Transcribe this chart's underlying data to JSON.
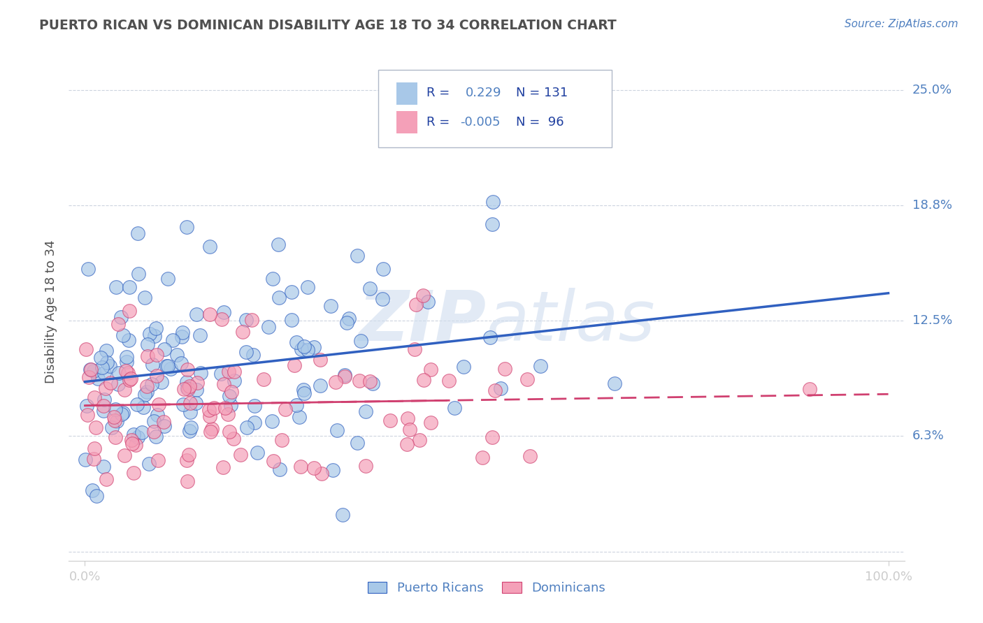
{
  "title": "PUERTO RICAN VS DOMINICAN DISABILITY AGE 18 TO 34 CORRELATION CHART",
  "source_text": "Source: ZipAtlas.com",
  "ylabel": "Disability Age 18 to 34",
  "xlim": [
    -0.02,
    1.02
  ],
  "ylim": [
    -0.005,
    0.265
  ],
  "ytick_vals": [
    0.0,
    0.0625,
    0.125,
    0.1875,
    0.25
  ],
  "ytick_labels": [
    "",
    "6.3%",
    "12.5%",
    "18.8%",
    "25.0%"
  ],
  "color_blue": "#a8c8e8",
  "color_pink": "#f4a0b8",
  "color_trend_blue": "#3060c0",
  "color_trend_pink": "#d04070",
  "watermark_color": "#d0ddef",
  "legend_label_blue": "Puerto Ricans",
  "legend_label_pink": "Dominicans",
  "background_color": "#ffffff",
  "grid_color": "#c8d0dc",
  "title_color": "#505050",
  "axis_label_color": "#5080c0",
  "legend_text_color": "#2040a0",
  "r_pr": 0.229,
  "n_pr": 131,
  "r_dom": -0.005,
  "n_dom": 96,
  "seed": 12345
}
